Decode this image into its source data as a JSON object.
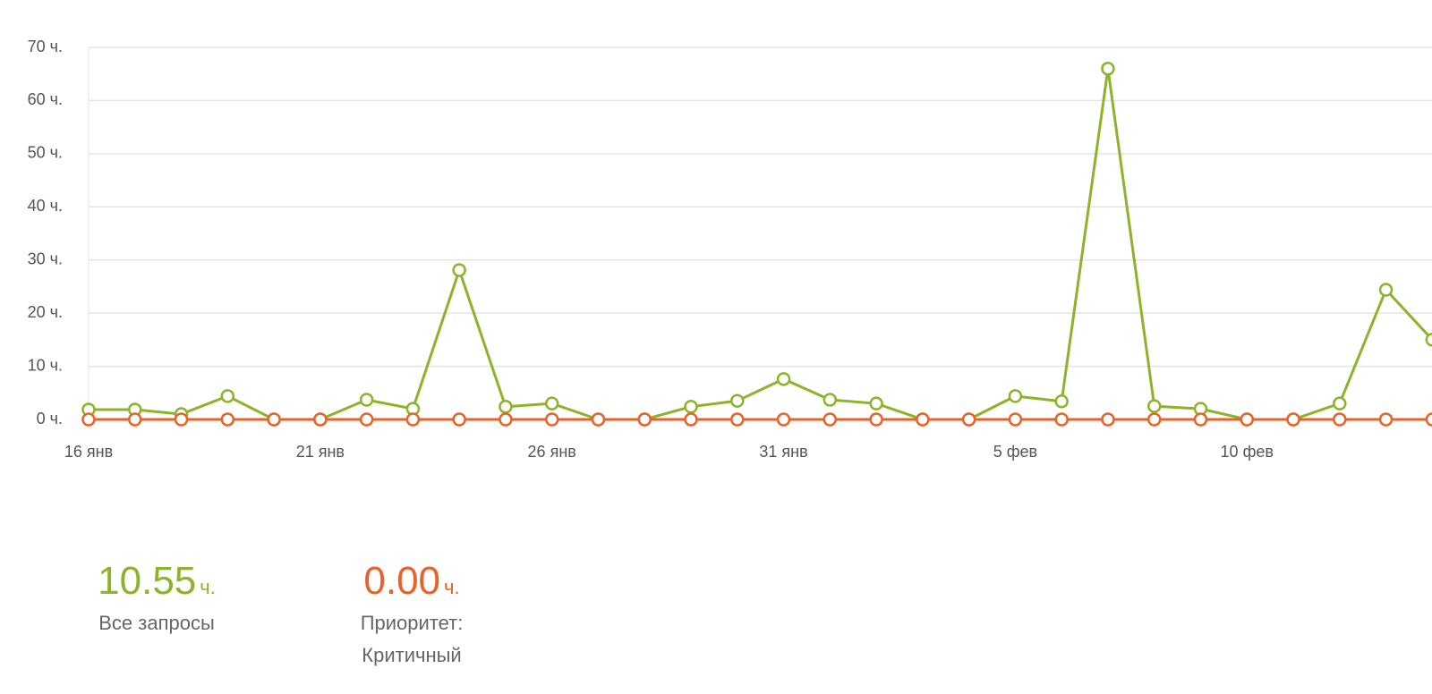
{
  "chart_data": {
    "type": "line",
    "categories": [
      "16 янв",
      null,
      null,
      null,
      null,
      "21 янв",
      null,
      null,
      null,
      null,
      "26 янв",
      null,
      null,
      null,
      null,
      "31 янв",
      null,
      null,
      null,
      null,
      "5 фев",
      null,
      null,
      null,
      null,
      "10 фев",
      null,
      null,
      null,
      null
    ],
    "series": [
      {
        "name": "Все запросы",
        "color": "#8cb42a",
        "values": [
          1.85,
          1.85,
          1.0,
          4.4,
          0,
          0,
          3.7,
          2.0,
          28.1,
          2.4,
          3.0,
          0,
          0,
          2.4,
          3.5,
          7.6,
          3.7,
          3.0,
          0,
          0,
          4.4,
          3.4,
          66,
          2.5,
          2.0,
          0,
          0,
          3.0,
          24.4,
          15
        ]
      },
      {
        "name": "Приоритет: Критичный",
        "color": "#e8622a",
        "values": [
          0,
          0,
          0,
          0,
          0,
          0,
          0,
          0,
          0,
          0,
          0,
          0,
          0,
          0,
          0,
          0,
          0,
          0,
          0,
          0,
          0,
          0,
          0,
          0,
          0,
          0,
          0,
          0,
          0,
          0
        ]
      }
    ],
    "ylim": [
      0,
      70
    ],
    "yticks": [
      {
        "value": 0,
        "label": "0 ч."
      },
      {
        "value": 10,
        "label": "10 ч."
      },
      {
        "value": 20,
        "label": "20 ч."
      },
      {
        "value": 30,
        "label": "30 ч."
      },
      {
        "value": 40,
        "label": "40 ч."
      },
      {
        "value": 50,
        "label": "50 ч."
      },
      {
        "value": 60,
        "label": "60 ч."
      },
      {
        "value": 70,
        "label": "70 ч."
      }
    ],
    "grid": true
  },
  "stats": [
    {
      "value": "10.55",
      "unit": "ч."
    },
    {
      "value": "0.00",
      "unit": "ч."
    }
  ]
}
